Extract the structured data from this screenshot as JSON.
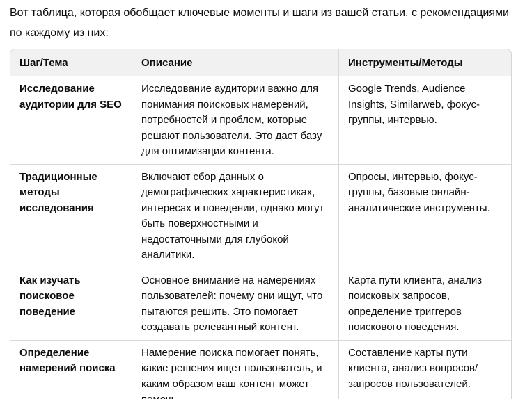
{
  "intro": "Вот таблица, которая обобщает ключевые моменты и шаги из вашей статьи, с рекомендациями по каждому из них:",
  "colors": {
    "header_bg": "#f1f1f1",
    "border": "#d9d9d9",
    "text": "#0d0d0d"
  },
  "table": {
    "headers": [
      "Шаг/Тема",
      "Описание",
      "Инструменты/Методы"
    ],
    "rows": [
      {
        "step": "Исследование аудитории для SEO",
        "description": "Исследование аудитории важно для понимания поисковых намерений, потребностей и проблем, которые решают пользователи. Это дает базу для оптимизации контента.",
        "tools": "Google Trends, Audience Insights, Similarweb, фокус-группы, интервью."
      },
      {
        "step": "Традиционные методы исследования",
        "description": "Включают сбор данных о демографических характеристиках, интересах и поведении, однако могут быть поверхностными и недостаточными для глубокой аналитики.",
        "tools": "Опросы, интервью, фокус-группы, базовые онлайн-аналитические инструменты."
      },
      {
        "step": "Как изучать поисковое поведение",
        "description": "Основное внимание на намерениях пользователей: почему они ищут, что пытаются решить. Это помогает создавать релевантный контент.",
        "tools": "Карта пути клиента, анализ поисковых запросов, определение триггеров поискового поведения."
      },
      {
        "step": "Определение намерений поиска",
        "description": "Намерение поиска помогает понять, какие решения ищет пользователь, и каким образом ваш контент может помочь.",
        "tools": "Составление карты пути клиента, анализ вопросов/запросов пользователей."
      }
    ]
  }
}
